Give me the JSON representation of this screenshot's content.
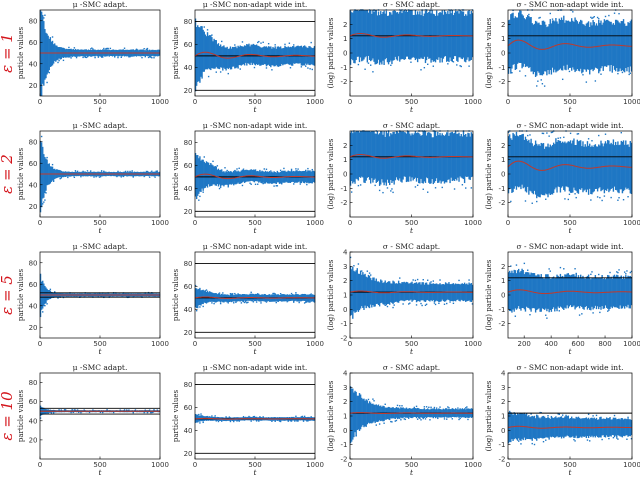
{
  "colors": {
    "particles": "#1f77c4",
    "mean_line": "#c0392b",
    "reference_line": "#000000",
    "row_label": "#d4141b"
  },
  "chart_data": {
    "type": "scatter",
    "description_rows": [
      "ε = 1",
      "ε = 2",
      "ε = 5",
      "ε = 10"
    ],
    "column_titles": [
      "μ -SMC adapt.",
      "μ -SMC non-adapt wide int.",
      "σ - SMC adapt.",
      "σ - SMC non-adapt wide int."
    ],
    "xlabel": "t",
    "ylabel_mu": "particle values",
    "ylabel_sigma": "(log) particle values",
    "rows": [
      {
        "label": "ε = 1",
        "panels": [
          {
            "title": "μ -SMC adapt.",
            "ylabel": "particle values",
            "xlabel": "t",
            "xlim": [
              0,
              1000
            ],
            "ylim": [
              10,
              90
            ],
            "xticks": [
              0,
              500,
              1000
            ],
            "yticks": [
              20,
              40,
              60,
              80
            ],
            "ref_lines": [
              50
            ],
            "center": 50,
            "spread0": 45,
            "spread_inf": 3,
            "decay": 60,
            "mean_wiggle": 0
          },
          {
            "title": "μ -SMC non-adapt wide int.",
            "ylabel": "particle values",
            "xlabel": "t",
            "xlim": [
              0,
              1000
            ],
            "ylim": [
              15,
              90
            ],
            "xticks": [
              0,
              500,
              1000
            ],
            "yticks": [
              20,
              40,
              60,
              80
            ],
            "ref_lines": [
              50,
              20,
              80
            ],
            "center": 50,
            "spread0": 30,
            "spread_inf": 8,
            "decay": 100,
            "mean_wiggle": 4
          },
          {
            "title": "σ - SMC adapt.",
            "ylabel": "(log) particle values",
            "xlabel": "t",
            "xlim": [
              0,
              1000
            ],
            "ylim": [
              -3,
              3
            ],
            "xticks": [
              0,
              500,
              1000
            ],
            "yticks": [
              -2,
              -1,
              0,
              1,
              2
            ],
            "ref_lines": [
              1.2
            ],
            "center": 1.2,
            "spread0": 1.8,
            "spread_inf": 1.6,
            "decay": 400,
            "mean_wiggle": 0.2
          },
          {
            "title": "σ - SMC non-adapt wide int.",
            "ylabel": "(log) particle values",
            "xlabel": "t",
            "xlim": [
              0,
              1000
            ],
            "ylim": [
              -3,
              3
            ],
            "xticks": [
              0,
              500,
              1000
            ],
            "yticks": [
              -2,
              -1,
              0,
              1,
              2
            ],
            "ref_lines": [
              1.2
            ],
            "center": 0.5,
            "spread0": 1.9,
            "spread_inf": 1.6,
            "decay": 400,
            "mean_wiggle": 0.5
          }
        ]
      },
      {
        "label": "ε = 2",
        "panels": [
          {
            "title": "μ -SMC adapt.",
            "ylabel": "particle values",
            "xlabel": "t",
            "xlim": [
              0,
              1000
            ],
            "ylim": [
              10,
              90
            ],
            "xticks": [
              0,
              500,
              1000
            ],
            "yticks": [
              20,
              40,
              60,
              80
            ],
            "ref_lines": [
              50
            ],
            "center": 50,
            "spread0": 35,
            "spread_inf": 2,
            "decay": 50,
            "mean_wiggle": 0
          },
          {
            "title": "μ -SMC non-adapt wide int.",
            "ylabel": "particle values",
            "xlabel": "t",
            "xlim": [
              0,
              1000
            ],
            "ylim": [
              15,
              90
            ],
            "xticks": [
              0,
              500,
              1000
            ],
            "yticks": [
              20,
              40,
              60,
              80
            ],
            "ref_lines": [
              50,
              20
            ],
            "center": 50,
            "spread0": 20,
            "spread_inf": 5,
            "decay": 100,
            "mean_wiggle": 3
          },
          {
            "title": "σ - SMC adapt.",
            "ylabel": "(log) particle values",
            "xlabel": "t",
            "xlim": [
              0,
              1000
            ],
            "ylim": [
              -3,
              3
            ],
            "xticks": [
              0,
              500,
              1000
            ],
            "yticks": [
              -2,
              -1,
              0,
              1,
              2
            ],
            "ref_lines": [
              1.2
            ],
            "center": 1.2,
            "spread0": 1.8,
            "spread_inf": 1.6,
            "decay": 400,
            "mean_wiggle": 0.2
          },
          {
            "title": "σ - SMC non-adapt wide int.",
            "ylabel": "(log) particle values",
            "xlabel": "t",
            "xlim": [
              0,
              1000
            ],
            "ylim": [
              -3,
              3
            ],
            "xticks": [
              0,
              500,
              1000
            ],
            "yticks": [
              -2,
              -1,
              0,
              1,
              2
            ],
            "ref_lines": [
              1.2
            ],
            "center": 0.5,
            "spread0": 1.9,
            "spread_inf": 1.6,
            "decay": 400,
            "mean_wiggle": 0.5
          }
        ]
      },
      {
        "label": "ε = 5",
        "panels": [
          {
            "title": "μ -SMC adapt.",
            "ylabel": "particle values",
            "xlabel": "t",
            "xlim": [
              0,
              1000
            ],
            "ylim": [
              10,
              90
            ],
            "xticks": [
              0,
              500,
              1000
            ],
            "yticks": [
              20,
              40,
              60,
              80
            ],
            "ref_lines": [
              50,
              48,
              52
            ],
            "center": 50,
            "spread0": 20,
            "spread_inf": 1.5,
            "decay": 40,
            "mean_wiggle": 0
          },
          {
            "title": "μ -SMC non-adapt wide int.",
            "ylabel": "particle values",
            "xlabel": "t",
            "xlim": [
              0,
              1000
            ],
            "ylim": [
              15,
              90
            ],
            "xticks": [
              0,
              500,
              1000
            ],
            "yticks": [
              20,
              40,
              60,
              80
            ],
            "ref_lines": [
              50,
              20,
              80
            ],
            "center": 50,
            "spread0": 10,
            "spread_inf": 3,
            "decay": 80,
            "mean_wiggle": 1
          },
          {
            "title": "σ - SMC adapt.",
            "ylabel": "(log) particle values",
            "xlabel": "t",
            "xlim": [
              0,
              1000
            ],
            "ylim": [
              -2,
              4
            ],
            "xticks": [
              0,
              500,
              1000
            ],
            "yticks": [
              -2,
              -1,
              0,
              1,
              2,
              3,
              4
            ],
            "ref_lines": [
              1.2
            ],
            "center": 1.2,
            "spread0": 1.8,
            "spread_inf": 0.6,
            "decay": 150,
            "mean_wiggle": 0.1
          },
          {
            "title": "σ - SMC non-adapt wide int.",
            "ylabel": "(log) particle values",
            "xlabel": "t",
            "xlim": [
              80,
              1000
            ],
            "ylim": [
              -3,
              3
            ],
            "xticks": [
              200,
              400,
              600,
              800,
              1000
            ],
            "yticks": [
              -2,
              -1,
              0,
              1,
              2
            ],
            "ref_lines": [
              1.2
            ],
            "center": 0.2,
            "spread0": 1.4,
            "spread_inf": 1.0,
            "decay": 400,
            "mean_wiggle": 0.2
          }
        ]
      },
      {
        "label": "ε = 10",
        "panels": [
          {
            "title": "μ -SMC adapt.",
            "ylabel": "particle values",
            "xlabel": "t",
            "xlim": [
              0,
              1000
            ],
            "ylim": [
              0,
              90
            ],
            "xticks": [
              0,
              500,
              1000
            ],
            "yticks": [
              20,
              40,
              60,
              80
            ],
            "ref_lines": [
              50,
              47,
              53
            ],
            "center": 50,
            "spread0": 6,
            "spread_inf": 1,
            "decay": 40,
            "mean_wiggle": 0
          },
          {
            "title": "μ -SMC non-adapt wide int.",
            "ylabel": "particle values",
            "xlabel": "t",
            "xlim": [
              0,
              1000
            ],
            "ylim": [
              15,
              90
            ],
            "xticks": [
              0,
              500,
              1000
            ],
            "yticks": [
              20,
              40,
              60,
              80
            ],
            "ref_lines": [
              50,
              20,
              80
            ],
            "center": 50,
            "spread0": 4,
            "spread_inf": 1.5,
            "decay": 60,
            "mean_wiggle": 0.5
          },
          {
            "title": "σ - SMC adapt.",
            "ylabel": "(log) particle values",
            "xlabel": "t",
            "xlim": [
              0,
              1000
            ],
            "ylim": [
              -2,
              4
            ],
            "xticks": [
              0,
              500,
              1000
            ],
            "yticks": [
              -2,
              -1,
              0,
              1,
              2,
              3,
              4
            ],
            "ref_lines": [
              1.2
            ],
            "center": 1.2,
            "spread0": 2.0,
            "spread_inf": 0.3,
            "decay": 120,
            "mean_wiggle": 0.05
          },
          {
            "title": "σ - SMC non-adapt wide int.",
            "ylabel": "(log) particle values",
            "xlabel": "t",
            "xlim": [
              0,
              1000
            ],
            "ylim": [
              -2,
              4
            ],
            "xticks": [
              0,
              500,
              1000
            ],
            "yticks": [
              -2,
              -1,
              0,
              1,
              2,
              3,
              4
            ],
            "ref_lines": [
              1.2
            ],
            "center": 0.2,
            "spread0": 1.0,
            "spread_inf": 0.6,
            "decay": 300,
            "mean_wiggle": 0.1
          }
        ]
      }
    ]
  }
}
